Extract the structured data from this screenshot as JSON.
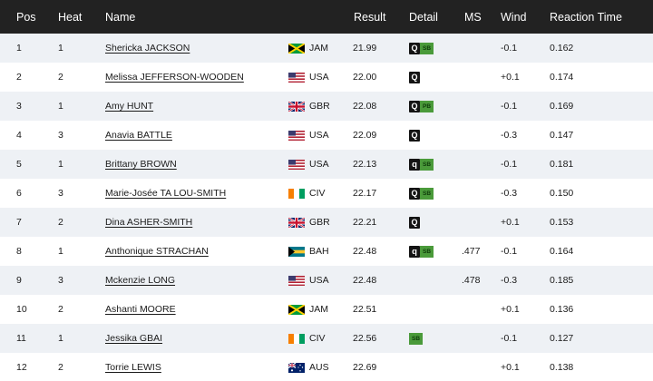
{
  "headers": {
    "pos": "Pos",
    "heat": "Heat",
    "name": "Name",
    "result": "Result",
    "detail": "Detail",
    "ms": "MS",
    "wind": "Wind",
    "reaction": "Reaction Time"
  },
  "rows": [
    {
      "pos": "1",
      "heat": "1",
      "name": "Shericka JACKSON",
      "flag": "jam-flag-icon",
      "nat": "JAM",
      "result": "21.99",
      "q": "Q",
      "rec": "SB",
      "ms": "",
      "wind": "-0.1",
      "rt": "0.162"
    },
    {
      "pos": "2",
      "heat": "2",
      "name": "Melissa JEFFERSON-WOODEN",
      "flag": "usa-flag-icon",
      "nat": "USA",
      "result": "22.00",
      "q": "Q",
      "rec": "",
      "ms": "",
      "wind": "+0.1",
      "rt": "0.174"
    },
    {
      "pos": "3",
      "heat": "1",
      "name": "Amy HUNT",
      "flag": "gbr-flag-icon",
      "nat": "GBR",
      "result": "22.08",
      "q": "Q",
      "rec": "PB",
      "ms": "",
      "wind": "-0.1",
      "rt": "0.169"
    },
    {
      "pos": "4",
      "heat": "3",
      "name": "Anavia BATTLE",
      "flag": "usa-flag-icon",
      "nat": "USA",
      "result": "22.09",
      "q": "Q",
      "rec": "",
      "ms": "",
      "wind": "-0.3",
      "rt": "0.147"
    },
    {
      "pos": "5",
      "heat": "1",
      "name": "Brittany BROWN",
      "flag": "usa-flag-icon",
      "nat": "USA",
      "result": "22.13",
      "q": "q",
      "rec": "SB",
      "ms": "",
      "wind": "-0.1",
      "rt": "0.181"
    },
    {
      "pos": "6",
      "heat": "3",
      "name": "Marie-Josée TA LOU-SMITH",
      "flag": "civ-flag-icon",
      "nat": "CIV",
      "result": "22.17",
      "q": "Q",
      "rec": "SB",
      "ms": "",
      "wind": "-0.3",
      "rt": "0.150"
    },
    {
      "pos": "7",
      "heat": "2",
      "name": "Dina ASHER-SMITH",
      "flag": "gbr-flag-icon",
      "nat": "GBR",
      "result": "22.21",
      "q": "Q",
      "rec": "",
      "ms": "",
      "wind": "+0.1",
      "rt": "0.153"
    },
    {
      "pos": "8",
      "heat": "1",
      "name": "Anthonique STRACHAN",
      "flag": "bah-flag-icon",
      "nat": "BAH",
      "result": "22.48",
      "q": "q",
      "rec": "SB",
      "ms": ".477",
      "wind": "-0.1",
      "rt": "0.164"
    },
    {
      "pos": "9",
      "heat": "3",
      "name": "Mckenzie LONG",
      "flag": "usa-flag-icon",
      "nat": "USA",
      "result": "22.48",
      "q": "",
      "rec": "",
      "ms": ".478",
      "wind": "-0.3",
      "rt": "0.185"
    },
    {
      "pos": "10",
      "heat": "2",
      "name": "Ashanti MOORE",
      "flag": "jam-flag-icon",
      "nat": "JAM",
      "result": "22.51",
      "q": "",
      "rec": "",
      "ms": "",
      "wind": "+0.1",
      "rt": "0.136"
    },
    {
      "pos": "11",
      "heat": "1",
      "name": "Jessika GBAI",
      "flag": "civ-flag-icon",
      "nat": "CIV",
      "result": "22.56",
      "q": "",
      "rec": "SB",
      "ms": "",
      "wind": "-0.1",
      "rt": "0.127"
    },
    {
      "pos": "12",
      "heat": "2",
      "name": "Torrie LEWIS",
      "flag": "aus-flag-icon",
      "nat": "AUS",
      "result": "22.69",
      "q": "",
      "rec": "",
      "ms": "",
      "wind": "+0.1",
      "rt": "0.138"
    }
  ],
  "colors": {
    "header_bg": "#222222",
    "odd_row_bg": "#eef1f5",
    "qualifier_badge": "#141414",
    "record_badge": "#4a9a3a"
  }
}
